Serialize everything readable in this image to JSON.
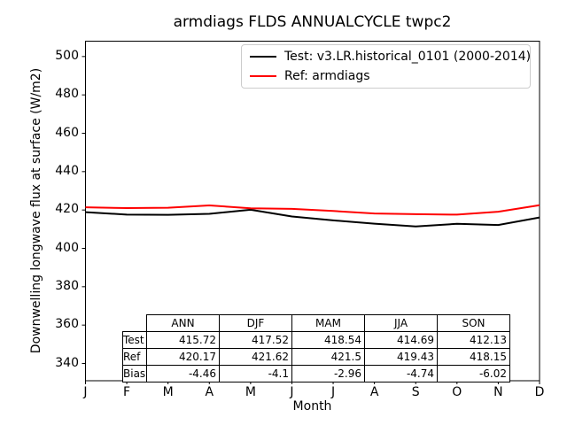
{
  "title": "armdiags FLDS ANNUALCYCLE twpc2",
  "legend": {
    "border_color": "#cccccc",
    "items": [
      {
        "label": "Test: v3.LR.historical_0101 (2000-2014)",
        "color": "#000000"
      },
      {
        "label": "Ref: armdiags",
        "color": "#ff0000"
      }
    ]
  },
  "chart_data": {
    "type": "line",
    "title": "armdiags FLDS ANNUALCYCLE twpc2",
    "xlabel": "Month",
    "ylabel": "Downwelling longwave flux at surface (W/m2)",
    "x_ticks": [
      "J",
      "F",
      "M",
      "A",
      "M",
      "J",
      "J",
      "A",
      "S",
      "O",
      "N",
      "D"
    ],
    "y_ticks": [
      340,
      360,
      380,
      400,
      420,
      440,
      460,
      480,
      500
    ],
    "ylim": [
      331,
      508
    ],
    "grid": false,
    "legend_position": "upper right",
    "series": [
      {
        "name": "Test: v3.LR.historical_0101 (2000-2014)",
        "color": "#000000",
        "values": [
          418.9,
          417.6,
          417.5,
          418.0,
          420.1,
          416.6,
          414.6,
          412.9,
          411.4,
          412.8,
          412.2,
          416.1
        ]
      },
      {
        "name": "Ref: armdiags",
        "color": "#ff0000",
        "values": [
          421.4,
          421.0,
          421.2,
          422.4,
          420.9,
          420.6,
          419.5,
          418.2,
          417.8,
          417.6,
          419.1,
          422.5
        ]
      }
    ]
  },
  "table": {
    "columns": [
      "ANN",
      "DJF",
      "MAM",
      "JJA",
      "SON"
    ],
    "rows": [
      {
        "label": "Test",
        "values": [
          "415.72",
          "417.52",
          "418.54",
          "414.69",
          "412.13"
        ]
      },
      {
        "label": "Ref",
        "values": [
          "420.17",
          "421.62",
          "421.5",
          "419.43",
          "418.15"
        ]
      },
      {
        "label": "Bias",
        "values": [
          "-4.46",
          "-4.1",
          "-2.96",
          "-4.74",
          "-6.02"
        ]
      }
    ]
  }
}
